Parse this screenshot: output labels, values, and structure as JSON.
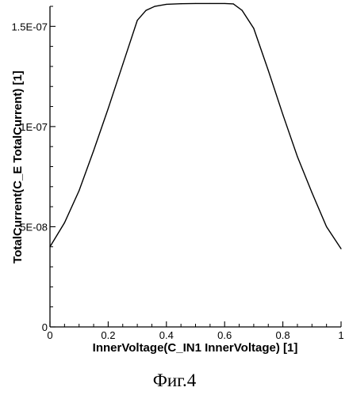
{
  "chart_data": {
    "type": "line",
    "title": "",
    "xlabel": "InnerVoltage(C_IN1 InnerVoltage) [1]",
    "ylabel": "TotalCurrent(C_E TotalCurrent) [1]",
    "xlim": [
      0,
      1
    ],
    "ylim": [
      0,
      1.6e-07
    ],
    "grid": false,
    "legend": "none",
    "x_ticks": [
      {
        "value": 0,
        "label": "0"
      },
      {
        "value": 0.2,
        "label": "0.2"
      },
      {
        "value": 0.4,
        "label": "0.4"
      },
      {
        "value": 0.6,
        "label": "0.6"
      },
      {
        "value": 0.8,
        "label": "0.8"
      },
      {
        "value": 1,
        "label": "1"
      }
    ],
    "y_ticks": [
      {
        "value": 0,
        "label": "0"
      },
      {
        "value": 5e-08,
        "label": "5E-08"
      },
      {
        "value": 1e-07,
        "label": "1E-07"
      },
      {
        "value": 1.5e-07,
        "label": "1.5E-07"
      }
    ],
    "series": [
      {
        "x": [
          0,
          0.05,
          0.1,
          0.15,
          0.2,
          0.25,
          0.3,
          0.33,
          0.36,
          0.4,
          0.45,
          0.5,
          0.55,
          0.6,
          0.63,
          0.66,
          0.7,
          0.75,
          0.8,
          0.85,
          0.9,
          0.95,
          1.0
        ],
        "y": [
          4e-08,
          5.2e-08,
          6.8e-08,
          8.8e-08,
          1.09e-07,
          1.31e-07,
          1.53e-07,
          1.58e-07,
          1.6e-07,
          1.61e-07,
          1.613e-07,
          1.614e-07,
          1.614e-07,
          1.614e-07,
          1.612e-07,
          1.58e-07,
          1.49e-07,
          1.28e-07,
          1.06e-07,
          8.5e-08,
          6.7e-08,
          5e-08,
          3.9e-08
        ]
      }
    ],
    "colors": {
      "line": "#000000",
      "axes": "#000000"
    }
  },
  "caption": "Фиг.4"
}
